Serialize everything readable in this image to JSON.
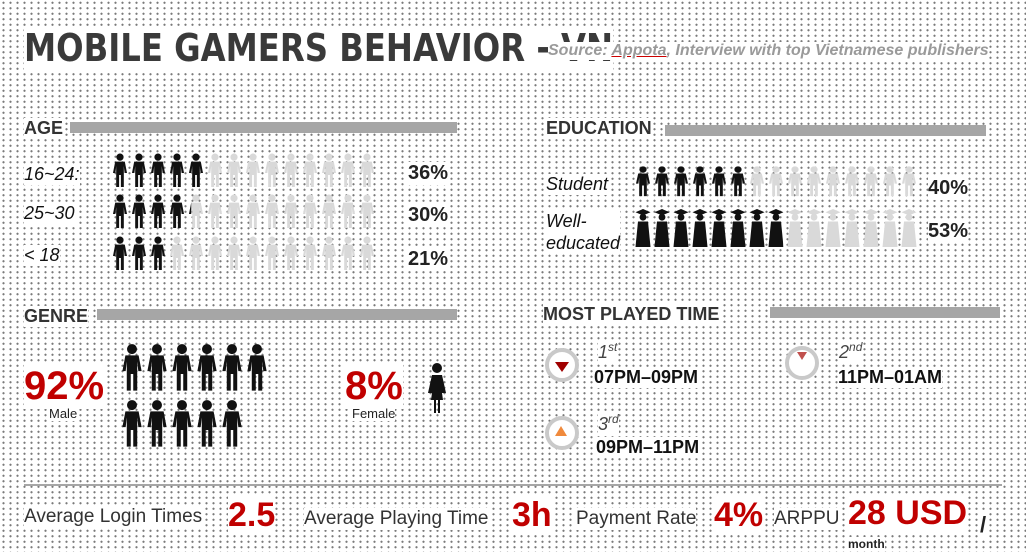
{
  "header": {
    "title": "MOBILE GAMERS BEHAVIOR - VN",
    "source_prefix": "Source: ",
    "source_link": "Appota",
    "source_rest": ", Interview with top Vietnamese publishers"
  },
  "age": {
    "heading": "AGE",
    "rows": [
      {
        "label": "16~24:",
        "percent": "36%",
        "value": 36
      },
      {
        "label": "25~30",
        "percent": "30%",
        "value": 30
      },
      {
        "label": "< 18",
        "percent": "21%",
        "value": 21
      }
    ]
  },
  "education": {
    "heading": "EDUCATION",
    "rows": [
      {
        "label": "Student",
        "percent": "40%",
        "value": 40
      },
      {
        "label_line1": "Well-",
        "label_line2": "educated",
        "percent": "53%",
        "value": 53
      }
    ]
  },
  "genre": {
    "heading": "GENRE",
    "male": {
      "percent": "92%",
      "label": "Male",
      "value": 92
    },
    "female": {
      "percent": "8%",
      "label": "Female",
      "value": 8
    }
  },
  "most_played": {
    "heading": "MOST PLAYED TIME",
    "items": [
      {
        "rank": "1",
        "suffix": "st",
        "time": "07PM–09PM",
        "marker_color": "#a00000"
      },
      {
        "rank": "2",
        "suffix": "nd",
        "time": "11PM–01AM",
        "marker_color": "#c0504d"
      },
      {
        "rank": "3",
        "suffix": "rd",
        "time": "09PM–11PM",
        "marker_color": "#f08a3c"
      }
    ]
  },
  "stats": {
    "login_label": "Average Login Times",
    "login_value": "2.5",
    "playing_label": "Average Playing Time",
    "playing_value": "3h",
    "payment_label": "Payment Rate",
    "payment_value": "4%",
    "arppu_label": "ARPPU",
    "arppu_value": "28 USD",
    "arppu_unit": "/",
    "arppu_period": "month"
  },
  "colors": {
    "accent_red": "#c00000",
    "bar_gray": "#a6a6a6",
    "icon_dark": "#111111",
    "icon_light": "#d9d9d9"
  },
  "icons": {
    "person": "person-icon",
    "graduate": "graduate-icon",
    "female": "female-icon"
  }
}
